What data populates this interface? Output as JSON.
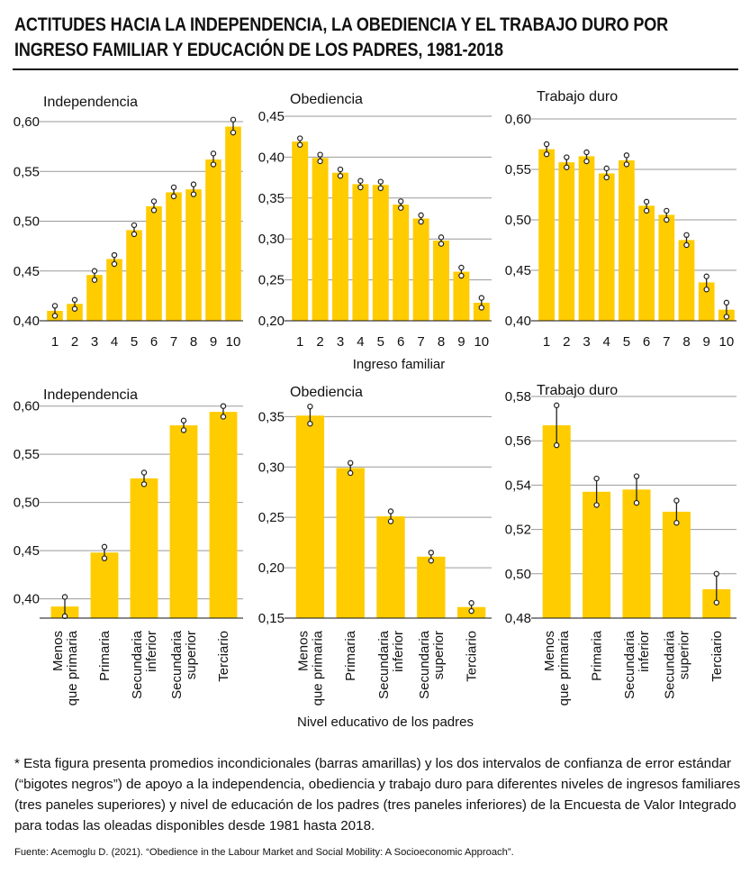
{
  "title": "ACTITUDES HACIA LA INDEPENDENCIA, LA OBEDIENCIA Y EL TRABAJO DURO POR INGRESO FAMILIAR Y EDUCACIÓN DE LOS PADRES, 1981-2018",
  "colors": {
    "bar": "#FFCC00",
    "grid": "#9a9a9a",
    "text": "#111111"
  },
  "chart_data": [
    {
      "type": "bar",
      "title": "Independencia",
      "row": "top",
      "categories": [
        "1",
        "2",
        "3",
        "4",
        "5",
        "6",
        "7",
        "8",
        "9",
        "10"
      ],
      "values": [
        0.41,
        0.417,
        0.446,
        0.462,
        0.491,
        0.515,
        0.529,
        0.532,
        0.562,
        0.595
      ],
      "ci": [
        [
          0.405,
          0.415
        ],
        [
          0.412,
          0.421
        ],
        [
          0.441,
          0.45
        ],
        [
          0.457,
          0.466
        ],
        [
          0.487,
          0.496
        ],
        [
          0.511,
          0.52
        ],
        [
          0.525,
          0.534
        ],
        [
          0.527,
          0.537
        ],
        [
          0.557,
          0.568
        ],
        [
          0.589,
          0.602
        ]
      ],
      "yticks": [
        0.4,
        0.45,
        0.5,
        0.55,
        0.6
      ],
      "ytick_labels": [
        "0,40",
        "0,45",
        "0,50",
        "0,55",
        "0,60"
      ],
      "ylim": [
        0.4,
        0.6
      ],
      "xlabel": "",
      "ylabel": ""
    },
    {
      "type": "bar",
      "title": "Obediencia",
      "row": "top",
      "categories": [
        "1",
        "2",
        "3",
        "4",
        "5",
        "6",
        "7",
        "8",
        "9",
        "10"
      ],
      "values": [
        0.419,
        0.399,
        0.381,
        0.367,
        0.366,
        0.342,
        0.325,
        0.298,
        0.26,
        0.222
      ],
      "ci": [
        [
          0.415,
          0.423
        ],
        [
          0.395,
          0.403
        ],
        [
          0.377,
          0.385
        ],
        [
          0.363,
          0.371
        ],
        [
          0.362,
          0.37
        ],
        [
          0.338,
          0.346
        ],
        [
          0.321,
          0.329
        ],
        [
          0.294,
          0.302
        ],
        [
          0.255,
          0.265
        ],
        [
          0.216,
          0.228
        ]
      ],
      "yticks": [
        0.2,
        0.25,
        0.3,
        0.35,
        0.4,
        0.45
      ],
      "ytick_labels": [
        "0,20",
        "0,25",
        "0,30",
        "0,35",
        "0,40",
        "0,45"
      ],
      "ylim": [
        0.2,
        0.45
      ],
      "xlabel": "",
      "ylabel": ""
    },
    {
      "type": "bar",
      "title": "Trabajo duro",
      "row": "top",
      "categories": [
        "1",
        "2",
        "3",
        "4",
        "5",
        "6",
        "7",
        "8",
        "9",
        "10"
      ],
      "values": [
        0.57,
        0.557,
        0.563,
        0.546,
        0.559,
        0.514,
        0.505,
        0.48,
        0.438,
        0.411
      ],
      "ci": [
        [
          0.565,
          0.575
        ],
        [
          0.552,
          0.562
        ],
        [
          0.558,
          0.567
        ],
        [
          0.542,
          0.551
        ],
        [
          0.555,
          0.564
        ],
        [
          0.509,
          0.518
        ],
        [
          0.5,
          0.509
        ],
        [
          0.475,
          0.485
        ],
        [
          0.431,
          0.444
        ],
        [
          0.404,
          0.418
        ]
      ],
      "yticks": [
        0.4,
        0.45,
        0.5,
        0.55,
        0.6
      ],
      "ytick_labels": [
        "0,40",
        "0,45",
        "0,50",
        "0,55",
        "0,60"
      ],
      "ylim": [
        0.4,
        0.6
      ],
      "xlabel": "",
      "ylabel": ""
    },
    {
      "type": "bar",
      "title": "Independencia",
      "row": "bottom",
      "categories": [
        "Menos|que primaria",
        "Primaria",
        "Secundaria|inferior",
        "Secundaria|superior",
        "Terciario"
      ],
      "values": [
        0.392,
        0.448,
        0.525,
        0.58,
        0.594
      ],
      "ci": [
        [
          0.382,
          0.402
        ],
        [
          0.442,
          0.454
        ],
        [
          0.519,
          0.531
        ],
        [
          0.575,
          0.585
        ],
        [
          0.589,
          0.6
        ]
      ],
      "yticks": [
        0.4,
        0.45,
        0.5,
        0.55,
        0.6
      ],
      "ytick_labels": [
        "0,40",
        "0,45",
        "0,50",
        "0,55",
        "0,60"
      ],
      "ylim": [
        0.38,
        0.61
      ],
      "xlabel": "",
      "ylabel": ""
    },
    {
      "type": "bar",
      "title": "Obediencia",
      "row": "bottom",
      "categories": [
        "Menos|que primaria",
        "Primaria",
        "Secundaria|inferior",
        "Secundaria|superior",
        "Terciario"
      ],
      "values": [
        0.351,
        0.299,
        0.251,
        0.211,
        0.161
      ],
      "ci": [
        [
          0.343,
          0.36
        ],
        [
          0.294,
          0.304
        ],
        [
          0.246,
          0.256
        ],
        [
          0.207,
          0.215
        ],
        [
          0.157,
          0.165
        ]
      ],
      "yticks": [
        0.15,
        0.2,
        0.25,
        0.3,
        0.35
      ],
      "ytick_labels": [
        "0,15",
        "0,20",
        "0,25",
        "0,30",
        "0,35"
      ],
      "ylim": [
        0.15,
        0.37
      ],
      "xlabel": "",
      "ylabel": ""
    },
    {
      "type": "bar",
      "title": "Trabajo duro",
      "row": "bottom",
      "categories": [
        "Menos|que primaria",
        "Primaria",
        "Secundaria|inferior",
        "Secundaria|superior",
        "Terciario"
      ],
      "values": [
        0.567,
        0.537,
        0.538,
        0.528,
        0.493
      ],
      "ci": [
        [
          0.558,
          0.576
        ],
        [
          0.531,
          0.543
        ],
        [
          0.532,
          0.544
        ],
        [
          0.523,
          0.533
        ],
        [
          0.487,
          0.5
        ]
      ],
      "yticks": [
        0.48,
        0.5,
        0.52,
        0.54,
        0.56,
        0.58
      ],
      "ytick_labels": [
        "0,48",
        "0,50",
        "0,52",
        "0,54",
        "0,56",
        "0,58"
      ],
      "ylim": [
        0.48,
        0.58
      ],
      "xlabel": "",
      "ylabel": ""
    }
  ],
  "xlabel_top": "Ingreso familiar",
  "xlabel_bottom": "Nivel educativo de los padres",
  "note": "* Esta figura presenta promedios incondicionales (barras amarillas) y los dos intervalos de confianza de error estándar (“bigotes negros”) de apoyo a la independencia, obediencia y trabajo duro para diferentes niveles de ingresos familiares (tres paneles superiores) y nivel de educación de los padres (tres paneles inferiores) de la Encuesta de Valor Integrado para todas las oleadas disponibles desde 1981 hasta 2018.",
  "source": "Fuente: Acemoglu D. (2021). “Obedience in the Labour Market and Social Mobility: A Socioeconomic Approach”."
}
